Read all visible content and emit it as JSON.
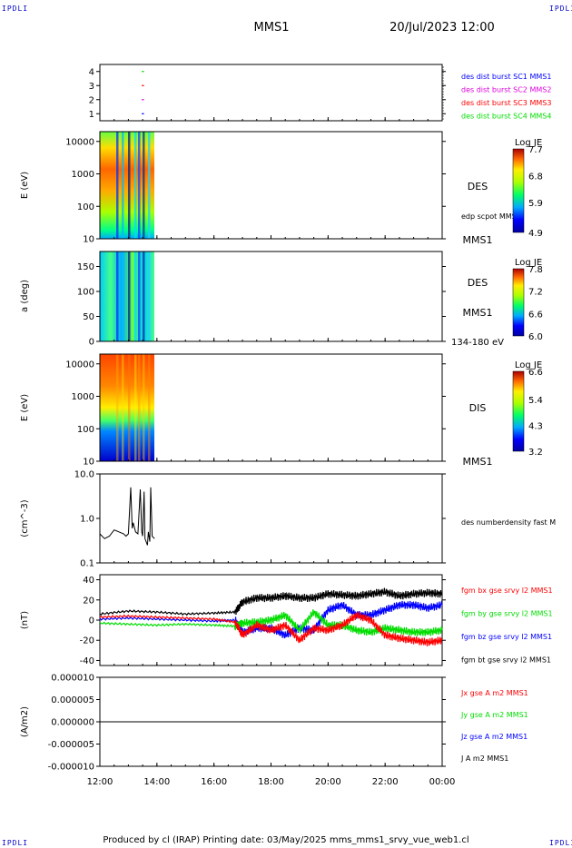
{
  "header": {
    "corner_label": "IPDLI",
    "mission": "MMS1",
    "datetime": "20/Jul/2023 12:00"
  },
  "footer": {
    "text": "Produced by cl (IRAP)   Printing date: 03/May/2025   mms_mms1_srvy_vue_web1.cl"
  },
  "colors": {
    "red": "#ff0000",
    "green": "#00dd00",
    "blue": "#0000ff",
    "magenta": "#dd00dd",
    "black": "#000000"
  },
  "time_axis": {
    "start": "12:00",
    "end": "00:00",
    "ticks": [
      "12:00",
      "14:00",
      "16:00",
      "18:00",
      "20:00",
      "22:00",
      "00:00"
    ]
  },
  "chart_data": [
    {
      "type": "scatter",
      "panel": "availability",
      "yticks": [
        "1",
        "2",
        "3",
        "4"
      ],
      "ylim": [
        0.5,
        4.5
      ],
      "series": [
        {
          "name": "des dist burst SC1 MMS1",
          "color": "#0000ff",
          "x": "13:30",
          "y": 1
        },
        {
          "name": "des dist burst SC2 MMS2",
          "color": "#dd00dd",
          "x": "13:30",
          "y": 2
        },
        {
          "name": "des dist burst SC3 MMS3",
          "color": "#ff0000",
          "x": "13:30",
          "y": 3
        },
        {
          "name": "des dist burst SC4 MMS4",
          "color": "#00dd00",
          "x": "13:30",
          "y": 4
        }
      ]
    },
    {
      "type": "heatmap",
      "panel": "des-energy",
      "ylabel": "E (eV)",
      "yscale": "log",
      "ylim": [
        10,
        20000
      ],
      "yticks": [
        "10",
        "100",
        "1000",
        "10000"
      ],
      "data_x_range": [
        "12:00",
        "13:55"
      ],
      "label": "DES",
      "overlay_label": "edp scpot MMS1",
      "sc_label": "MMS1",
      "colorbar": {
        "title": "Log JE",
        "ticks": [
          "7.7",
          "6.8",
          "5.9",
          "4.9"
        ],
        "range": [
          4.9,
          7.7
        ]
      }
    },
    {
      "type": "heatmap",
      "panel": "des-pitch",
      "ylabel": "a (deg)",
      "ylim": [
        0,
        180
      ],
      "yticks": [
        "0",
        "50",
        "100",
        "150"
      ],
      "data_x_range": [
        "12:00",
        "13:55"
      ],
      "label": "DES",
      "sc_label": "MMS1",
      "energy_label": "134-180 eV",
      "colorbar": {
        "title": "Log JE",
        "ticks": [
          "7.8",
          "7.2",
          "6.6",
          "6.0"
        ],
        "range": [
          6.0,
          7.8
        ]
      }
    },
    {
      "type": "heatmap",
      "panel": "dis-energy",
      "ylabel": "E (eV)",
      "yscale": "log",
      "ylim": [
        10,
        20000
      ],
      "yticks": [
        "10",
        "100",
        "1000",
        "10000"
      ],
      "data_x_range": [
        "12:00",
        "13:55"
      ],
      "label": "DIS",
      "sc_label": "MMS1",
      "colorbar": {
        "title": "Log JE",
        "ticks": [
          "6.6",
          "5.4",
          "4.3",
          "3.2"
        ],
        "range": [
          3.2,
          6.6
        ]
      }
    },
    {
      "type": "line",
      "panel": "density",
      "ylabel": "(cm^-3)",
      "yscale": "log",
      "ylim": [
        0.1,
        10
      ],
      "yticks": [
        "0.1",
        "1.0",
        "10.0"
      ],
      "series": [
        {
          "name": "des numberdensity fast M",
          "color": "#000000",
          "x": [
            "12:00",
            "12:10",
            "12:20",
            "12:30",
            "12:40",
            "12:50",
            "12:55",
            "13:00",
            "13:05",
            "13:08",
            "13:10",
            "13:15",
            "13:20",
            "13:25",
            "13:28",
            "13:30",
            "13:33",
            "13:35",
            "13:40",
            "13:42",
            "13:45",
            "13:47",
            "13:50",
            "13:55"
          ],
          "y": [
            0.45,
            0.35,
            0.4,
            0.55,
            0.5,
            0.45,
            0.4,
            0.45,
            5.0,
            0.6,
            0.8,
            0.5,
            0.45,
            4.5,
            0.5,
            0.4,
            4.0,
            0.35,
            0.25,
            0.5,
            0.3,
            5.0,
            0.4,
            0.35
          ]
        }
      ]
    },
    {
      "type": "line",
      "panel": "b-field",
      "ylabel": "(nT)",
      "ylim": [
        -45,
        45
      ],
      "yticks": [
        "-40",
        "-20",
        "0",
        "20",
        "40"
      ],
      "x": [
        "12:00",
        "13:00",
        "14:00",
        "15:00",
        "16:00",
        "16:45",
        "17:00",
        "17:30",
        "18:00",
        "18:30",
        "19:00",
        "19:30",
        "20:00",
        "20:30",
        "21:00",
        "21:30",
        "22:00",
        "22:30",
        "23:00",
        "23:30",
        "00:00"
      ],
      "series": [
        {
          "name": "fgm bx gse srvy l2 MMS1",
          "color": "#ff0000",
          "values": [
            3,
            4,
            3,
            2,
            1,
            -2,
            -15,
            -5,
            -10,
            -5,
            -20,
            -8,
            -10,
            -5,
            5,
            0,
            -15,
            -18,
            -20,
            -22,
            -20
          ]
        },
        {
          "name": "fgm by gse srvy l2 MMS1",
          "color": "#00dd00",
          "values": [
            -3,
            -4,
            -5,
            -4,
            -5,
            -6,
            -3,
            -2,
            0,
            5,
            -10,
            8,
            -5,
            -5,
            -10,
            -12,
            -8,
            -10,
            -12,
            -12,
            -10
          ]
        },
        {
          "name": "fgm bz gse srvy l2 MMS1",
          "color": "#0000ff",
          "values": [
            1,
            2,
            1,
            0,
            -1,
            0,
            -12,
            -8,
            -8,
            -15,
            -8,
            -10,
            10,
            15,
            5,
            5,
            10,
            15,
            15,
            12,
            15
          ]
        },
        {
          "name": "fgm bt gse srvy l2 MMS1",
          "color": "#000000",
          "values": [
            6,
            9,
            8,
            6,
            7,
            8,
            18,
            22,
            22,
            24,
            22,
            22,
            26,
            25,
            24,
            26,
            28,
            24,
            26,
            27,
            26
          ]
        }
      ]
    },
    {
      "type": "line",
      "panel": "current",
      "ylabel": "(A/m2)",
      "ylim": [
        -1e-05,
        1e-05
      ],
      "yticks": [
        "-0.000010",
        "-0.000005",
        "0.000000",
        "0.000005",
        "0.000010"
      ],
      "series": [
        {
          "name": "Jx gse A m2 MMS1",
          "color": "#ff0000",
          "values": [
            0,
            0
          ]
        },
        {
          "name": "Jy gse A m2 MMS1",
          "color": "#00dd00",
          "values": [
            0,
            0
          ]
        },
        {
          "name": "Jz gse A m2 MMS1",
          "color": "#0000ff",
          "values": [
            0,
            0
          ]
        },
        {
          "name": "J A m2 MMS1",
          "color": "#000000",
          "values": [
            0,
            0
          ]
        }
      ]
    }
  ]
}
